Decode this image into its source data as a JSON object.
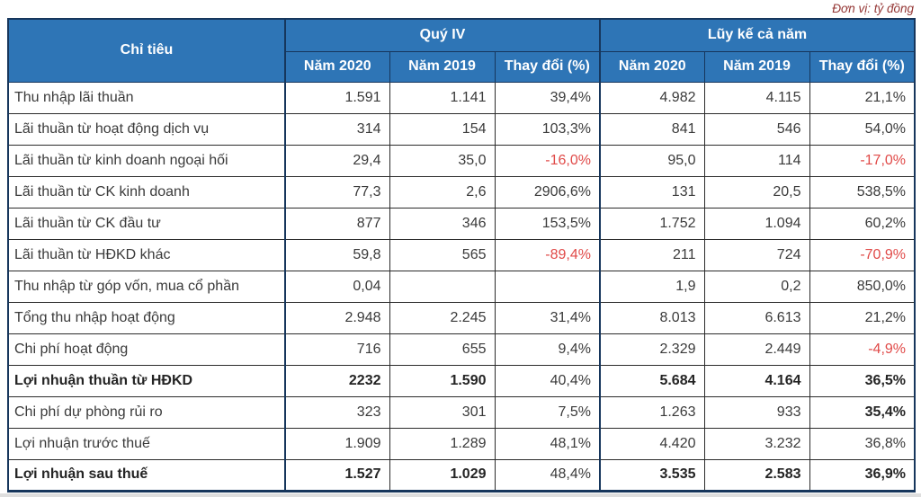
{
  "unit_note": "Đơn vị: tỷ đồng",
  "colors": {
    "header_bg": "#2e75b6",
    "outer_border": "#16365c",
    "negative_red": "#e04a48",
    "unit_text": "#943634"
  },
  "table": {
    "criteria_header": "Chỉ tiêu",
    "groups": [
      {
        "label": "Quý IV"
      },
      {
        "label": "Lũy kế cả năm"
      }
    ],
    "sub_headers": [
      "Năm 2020",
      "Năm 2019",
      "Thay đổi (%)",
      "Năm 2020",
      "Năm 2019",
      "Thay đổi (%)"
    ],
    "rows": [
      {
        "label": "Thu nhập lãi thuần",
        "values": [
          "1.591",
          "1.141",
          "39,4%",
          "4.982",
          "4.115",
          "21,1%"
        ],
        "bold_label": false,
        "bold_cells": [],
        "red_cells": []
      },
      {
        "label": "Lãi thuần từ hoạt động dịch vụ",
        "values": [
          "314",
          "154",
          "103,3%",
          "841",
          "546",
          "54,0%"
        ],
        "bold_label": false,
        "bold_cells": [],
        "red_cells": []
      },
      {
        "label": "Lãi thuần từ kinh doanh ngoại hối",
        "values": [
          "29,4",
          "35,0",
          "-16,0%",
          "95,0",
          "114",
          "-17,0%"
        ],
        "bold_label": false,
        "bold_cells": [],
        "red_cells": [
          2,
          5
        ]
      },
      {
        "label": "Lãi thuần từ CK kinh doanh",
        "values": [
          "77,3",
          "2,6",
          "2906,6%",
          "131",
          "20,5",
          "538,5%"
        ],
        "bold_label": false,
        "bold_cells": [],
        "red_cells": []
      },
      {
        "label": "Lãi thuần từ CK đầu tư",
        "values": [
          "877",
          "346",
          "153,5%",
          "1.752",
          "1.094",
          "60,2%"
        ],
        "bold_label": false,
        "bold_cells": [],
        "red_cells": []
      },
      {
        "label": "Lãi thuần từ HĐKD khác",
        "values": [
          "59,8",
          "565",
          "-89,4%",
          "211",
          "724",
          "-70,9%"
        ],
        "bold_label": false,
        "bold_cells": [],
        "red_cells": [
          2,
          5
        ]
      },
      {
        "label": "Thu nhập từ góp vốn, mua cổ phần",
        "values": [
          "0,04",
          "",
          "",
          "1,9",
          "0,2",
          "850,0%"
        ],
        "bold_label": false,
        "bold_cells": [],
        "red_cells": []
      },
      {
        "label": "Tổng thu nhập hoạt động",
        "values": [
          "2.948",
          "2.245",
          "31,4%",
          "8.013",
          "6.613",
          "21,2%"
        ],
        "bold_label": false,
        "bold_cells": [],
        "red_cells": []
      },
      {
        "label": "Chi phí hoạt động",
        "values": [
          "716",
          "655",
          "9,4%",
          "2.329",
          "2.449",
          "-4,9%"
        ],
        "bold_label": false,
        "bold_cells": [],
        "red_cells": [
          5
        ]
      },
      {
        "label": "Lợi nhuận thuần từ HĐKD",
        "values": [
          "2232",
          "1.590",
          "40,4%",
          "5.684",
          "4.164",
          "36,5%"
        ],
        "bold_label": true,
        "bold_cells": [
          0,
          1,
          3,
          4,
          5
        ],
        "red_cells": []
      },
      {
        "label": "Chi phí dự phòng rủi ro",
        "values": [
          "323",
          "301",
          "7,5%",
          "1.263",
          "933",
          "35,4%"
        ],
        "bold_label": false,
        "bold_cells": [
          5
        ],
        "red_cells": []
      },
      {
        "label": "Lợi nhuận trước thuế",
        "values": [
          "1.909",
          "1.289",
          "48,1%",
          "4.420",
          "3.232",
          "36,8%"
        ],
        "bold_label": false,
        "bold_cells": [],
        "red_cells": []
      },
      {
        "label": "Lợi nhuận sau thuế",
        "values": [
          "1.527",
          "1.029",
          "48,4%",
          "3.535",
          "2.583",
          "36,9%"
        ],
        "bold_label": true,
        "bold_cells": [
          0,
          1,
          3,
          4,
          5
        ],
        "red_cells": []
      }
    ]
  }
}
